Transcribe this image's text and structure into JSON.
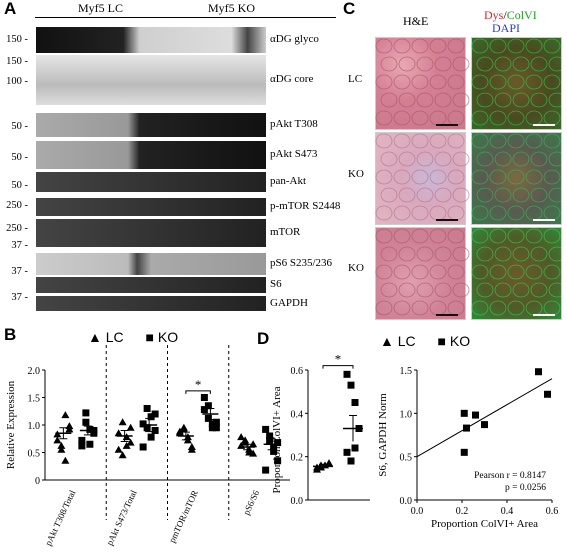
{
  "panels": {
    "a": "A",
    "b": "B",
    "c": "C",
    "d": "D"
  },
  "blot": {
    "groups": [
      "Myf5 LC",
      "Myf5 KO"
    ],
    "rows": [
      {
        "label": "αDG glyco",
        "mw": [
          "150 -"
        ]
      },
      {
        "label": "αDG core",
        "mw": [
          "150 -",
          "100 -"
        ]
      },
      {
        "label": "pAkt T308",
        "mw": [
          "50 -"
        ]
      },
      {
        "label": "pAkt S473",
        "mw": [
          "50 -"
        ]
      },
      {
        "label": "pan-Akt",
        "mw": [
          "50 -"
        ]
      },
      {
        "label": "p-mTOR S2448",
        "mw": [
          "250 -"
        ]
      },
      {
        "label": "mTOR",
        "mw": [
          "250 -"
        ]
      },
      {
        "label": "pS6 S235/236",
        "mw": [
          "37 -"
        ]
      },
      {
        "label": "S6",
        "mw": [
          "37 -"
        ]
      },
      {
        "label": "GAPDH",
        "mw": [
          "37 -"
        ]
      }
    ]
  },
  "micro": {
    "he": "H&E",
    "dys": "Dys",
    "slash": "/",
    "colvi": "ColVI",
    "dapi": "DAPI",
    "rows": [
      "LC",
      "KO",
      "KO"
    ],
    "colors": {
      "dys": "#e0202a",
      "colvi": "#1aa31a",
      "dapi": "#2a3cc8"
    }
  },
  "legend": {
    "lc": "LC",
    "ko": "KO"
  },
  "chart_data": [
    {
      "type": "scatter",
      "panel": "B",
      "ylabel": "Relative Expression",
      "ylim": [
        0,
        2.0
      ],
      "yticks": [
        "0",
        "0.5",
        "1.0",
        "1.5",
        "2.0"
      ],
      "categories": [
        "pAkt T308/Total",
        "pAkt S473/Total",
        "pmTOR/mTOR",
        "pS6/S6"
      ],
      "significance": [
        {
          "category": "pmTOR/mTOR",
          "label": "*"
        }
      ],
      "series": [
        {
          "name": "LC",
          "marker": "triangle",
          "values": [
            [
              0.83,
              0.62,
              1.18,
              0.98,
              0.72,
              0.55,
              0.35,
              0.92
            ],
            [
              0.85,
              1.05,
              0.62,
              0.95,
              0.55,
              0.45,
              0.78,
              0.68
            ],
            [
              0.85,
              0.95,
              0.78,
              0.6,
              0.88,
              0.92,
              0.72,
              0.55
            ],
            [
              0.78,
              0.68,
              0.55,
              0.48,
              0.62,
              0.72,
              0.5,
              0.65
            ]
          ],
          "means": [
            0.85,
            0.8,
            0.8,
            0.6
          ],
          "sems": [
            0.1,
            0.1,
            0.07,
            0.05
          ]
        },
        {
          "name": "KO",
          "marker": "square",
          "values": [
            [
              0.72,
              1.22,
              0.92,
              0.85,
              0.62,
              1.05,
              0.65,
              0.9
            ],
            [
              1.02,
              1.3,
              0.78,
              1.2,
              0.6,
              0.95,
              1.15,
              0.9
            ],
            [
              1.5,
              1.35,
              1.02,
              0.95,
              1.28,
              1.12,
              0.95,
              1.05
            ],
            [
              0.92,
              0.72,
              0.6,
              0.35,
              0.18,
              0.8,
              0.52,
              0.68
            ]
          ],
          "means": [
            0.9,
            1.0,
            1.2,
            0.65
          ],
          "sems": [
            0.08,
            0.12,
            0.1,
            0.1
          ]
        }
      ]
    },
    {
      "type": "scatter",
      "panel": "D",
      "ylabel": "Proportion ColVI+ Area",
      "ylim": [
        0.0,
        0.6
      ],
      "yticks": [
        "0.0",
        "0.2",
        "0.4",
        "0.6"
      ],
      "significance": [
        {
          "label": "*"
        }
      ],
      "series": [
        {
          "name": "LC",
          "marker": "triangle",
          "values": [
            0.14,
            0.15,
            0.16,
            0.17,
            0.15,
            0.16
          ],
          "mean": 0.155,
          "sem": 0.01
        },
        {
          "name": "KO",
          "marker": "square",
          "values": [
            0.58,
            0.53,
            0.45,
            0.33,
            0.22,
            0.18,
            0.24
          ],
          "mean": 0.33,
          "sem": 0.06
        }
      ]
    },
    {
      "type": "scatter",
      "panel": "D-right",
      "xlabel": "Proportion ColVI+ Area",
      "ylabel": "S6, GAPDH Norm",
      "xlim": [
        0.0,
        0.6
      ],
      "ylim": [
        0.0,
        1.5
      ],
      "xticks": [
        "0.0",
        "0.2",
        "0.4",
        "0.6"
      ],
      "yticks": [
        "0.0",
        "0.5",
        "1.0",
        "1.5"
      ],
      "points": [
        [
          0.21,
          1.0
        ],
        [
          0.26,
          0.98
        ],
        [
          0.22,
          0.83
        ],
        [
          0.3,
          0.87
        ],
        [
          0.21,
          0.55
        ],
        [
          0.54,
          1.48
        ],
        [
          0.58,
          1.22
        ]
      ],
      "fit": [
        [
          0.0,
          0.5
        ],
        [
          0.6,
          1.4
        ]
      ],
      "annotation": [
        "Pearson r = 0.8147",
        "p = 0.0256"
      ]
    }
  ]
}
